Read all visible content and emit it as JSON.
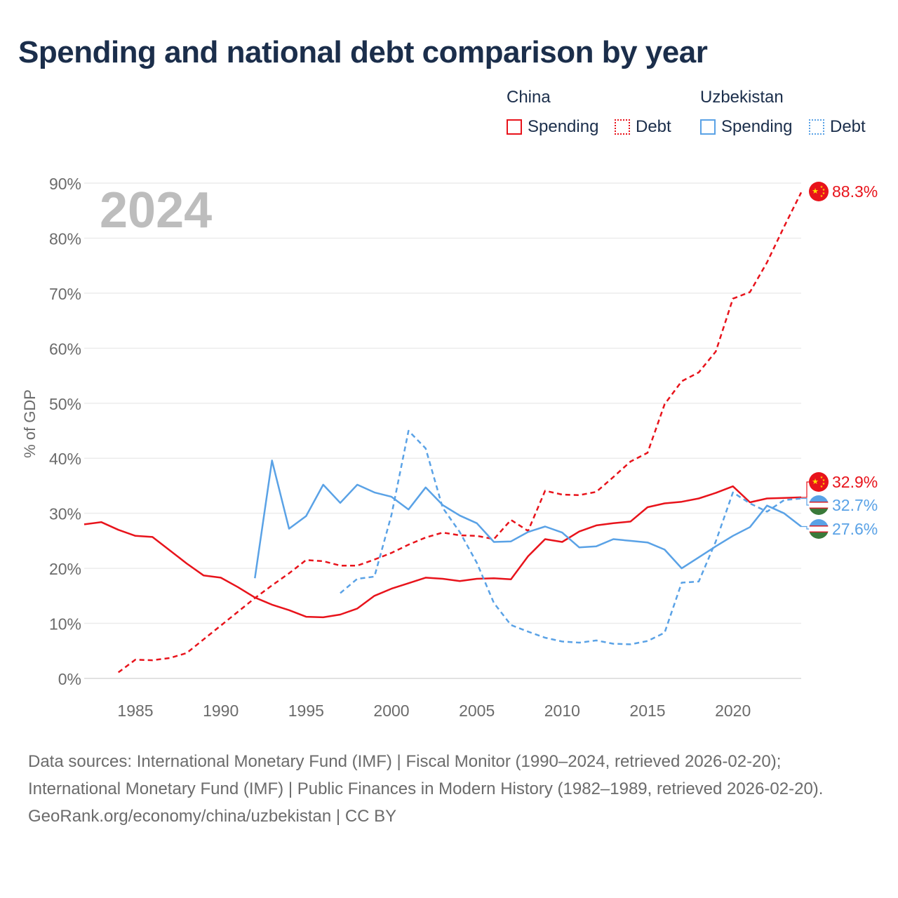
{
  "title": "Spending and national debt comparison by year",
  "legend": {
    "groups": [
      {
        "country": "China",
        "items": [
          {
            "label": "Spending",
            "style": "solid",
            "color": "#e8131b"
          },
          {
            "label": "Debt",
            "style": "dotted",
            "color": "#e8131b"
          }
        ]
      },
      {
        "country": "Uzbekistan",
        "items": [
          {
            "label": "Spending",
            "style": "solid",
            "color": "#5aa2e6"
          },
          {
            "label": "Debt",
            "style": "dotted",
            "color": "#5aa2e6"
          }
        ]
      }
    ]
  },
  "chart_data": {
    "type": "line",
    "year_watermark": "2024",
    "ylabel": "% of GDP",
    "xlabel": "",
    "xlim": [
      1982,
      2024
    ],
    "ylim": [
      0,
      90
    ],
    "x_ticks": [
      1985,
      1990,
      1995,
      2000,
      2005,
      2010,
      2015,
      2020
    ],
    "y_ticks": [
      0,
      10,
      20,
      30,
      40,
      50,
      60,
      70,
      80,
      90
    ],
    "y_tick_labels": [
      "0%",
      "10%",
      "20%",
      "30%",
      "40%",
      "50%",
      "60%",
      "70%",
      "80%",
      "90%"
    ],
    "series": [
      {
        "name": "China Spending",
        "color": "#e8131b",
        "dash": "solid",
        "end_label": "32.9%",
        "x": [
          1982,
          1983,
          1984,
          1985,
          1986,
          1987,
          1988,
          1989,
          1990,
          1991,
          1992,
          1993,
          1994,
          1995,
          1996,
          1997,
          1998,
          1999,
          2000,
          2001,
          2002,
          2003,
          2004,
          2005,
          2006,
          2007,
          2008,
          2009,
          2010,
          2011,
          2012,
          2013,
          2014,
          2015,
          2016,
          2017,
          2018,
          2019,
          2020,
          2021,
          2022,
          2023,
          2024
        ],
        "values": [
          28.0,
          28.4,
          27.0,
          25.9,
          25.7,
          23.3,
          20.9,
          18.7,
          18.3,
          16.6,
          14.7,
          13.4,
          12.4,
          11.2,
          11.1,
          11.6,
          12.7,
          15.0,
          16.3,
          17.3,
          18.3,
          18.1,
          17.7,
          18.1,
          18.2,
          18.0,
          22.2,
          25.3,
          24.8,
          26.7,
          27.8,
          28.2,
          28.5,
          31.1,
          31.8,
          32.1,
          32.7,
          33.7,
          34.9,
          32.0,
          32.7,
          32.8,
          32.9
        ]
      },
      {
        "name": "China Debt",
        "color": "#e8131b",
        "dash": "dashed",
        "end_label": "88.3%",
        "x": [
          1984,
          1985,
          1986,
          1987,
          1988,
          1989,
          1990,
          1991,
          1992,
          1993,
          1994,
          1995,
          1996,
          1997,
          1998,
          1999,
          2000,
          2001,
          2002,
          2003,
          2004,
          2005,
          2006,
          2007,
          2008,
          2009,
          2010,
          2011,
          2012,
          2013,
          2014,
          2015,
          2016,
          2017,
          2018,
          2019,
          2020,
          2021,
          2022,
          2023,
          2024
        ],
        "values": [
          1.1,
          3.4,
          3.3,
          3.7,
          4.6,
          7.1,
          9.6,
          12.1,
          14.6,
          16.9,
          19.1,
          21.5,
          21.3,
          20.5,
          20.5,
          21.6,
          22.8,
          24.3,
          25.6,
          26.5,
          26.0,
          25.9,
          25.3,
          28.8,
          26.8,
          34.1,
          33.4,
          33.3,
          33.9,
          36.6,
          39.4,
          41.0,
          49.8,
          54.0,
          55.6,
          59.4,
          69.0,
          70.2,
          75.6,
          82.1,
          88.3
        ]
      },
      {
        "name": "Uzbekistan Spending",
        "color": "#5aa2e6",
        "dash": "solid",
        "end_label": "27.6%",
        "x": [
          1992,
          1993,
          1994,
          1995,
          1996,
          1997,
          1998,
          1999,
          2000,
          2001,
          2002,
          2003,
          2004,
          2005,
          2006,
          2007,
          2008,
          2009,
          2010,
          2011,
          2012,
          2013,
          2014,
          2015,
          2016,
          2017,
          2018,
          2019,
          2020,
          2021,
          2022,
          2023,
          2024
        ],
        "values": [
          18.2,
          39.6,
          27.2,
          29.5,
          35.2,
          31.9,
          35.2,
          33.8,
          33.0,
          30.7,
          34.7,
          31.5,
          29.6,
          28.2,
          24.8,
          24.9,
          26.6,
          27.6,
          26.5,
          23.8,
          24.0,
          25.3,
          25.0,
          24.7,
          23.4,
          20.0,
          22.0,
          24.0,
          25.9,
          27.5,
          31.4,
          30.0,
          27.6
        ]
      },
      {
        "name": "Uzbekistan Debt",
        "color": "#5aa2e6",
        "dash": "dashed",
        "end_label": "32.7%",
        "x": [
          1997,
          1998,
          1999,
          2000,
          2001,
          2002,
          2003,
          2004,
          2005,
          2006,
          2007,
          2008,
          2009,
          2010,
          2011,
          2012,
          2013,
          2014,
          2015,
          2016,
          2017,
          2018,
          2019,
          2020,
          2021,
          2022,
          2023,
          2024
        ],
        "values": [
          15.5,
          18.1,
          18.5,
          29.7,
          45.0,
          41.8,
          31.0,
          26.6,
          21.0,
          13.7,
          9.7,
          8.5,
          7.4,
          6.7,
          6.5,
          6.9,
          6.3,
          6.2,
          6.8,
          8.3,
          17.4,
          17.6,
          24.9,
          33.8,
          31.8,
          30.3,
          32.4,
          32.7
        ]
      }
    ]
  },
  "footer": {
    "sources": "Data sources: International Monetary Fund (IMF) | Fiscal Monitor (1990–2024, retrieved 2026-02-20); International Monetary Fund (IMF) | Public Finances in Modern History (1982–1989, retrieved 2026-02-20).",
    "credit": "GeoRank.org/economy/china/uzbekistan | CC BY"
  }
}
